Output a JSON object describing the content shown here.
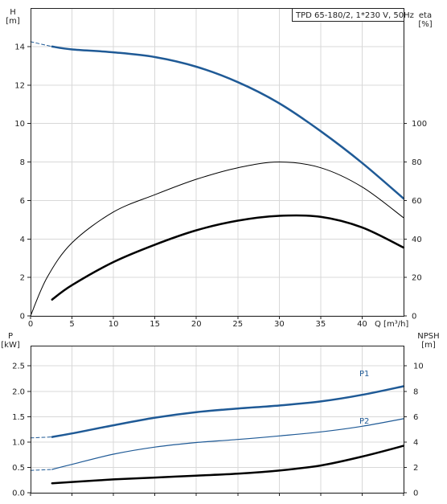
{
  "chart_data": [
    {
      "type": "line",
      "title": "TPD 65-180/2, 1*230 V, 50Hz",
      "xlabel": "Q [m³/h]",
      "ylabel_left": [
        "H",
        "[m]"
      ],
      "ylabel_right": [
        "eta",
        "[%]"
      ],
      "xlim": [
        0,
        45
      ],
      "ylim_left": [
        0,
        16
      ],
      "ylim_right": [
        0,
        160
      ],
      "x_ticks": [
        "0",
        "5",
        "10",
        "15",
        "20",
        "25",
        "30",
        "35",
        "40"
      ],
      "y_ticks_left": [
        "0",
        "2",
        "4",
        "6",
        "8",
        "10",
        "12",
        "14"
      ],
      "y_ticks_right": [
        "0",
        "20",
        "40",
        "60",
        "80",
        "100"
      ],
      "grid": true,
      "colors": {
        "head": "#1f5a96",
        "efficiency": "#000000",
        "grid": "#d8d8d8"
      },
      "series": [
        {
          "key": "h_dashed",
          "axis": "left",
          "color": "#1f5a96",
          "width": 1,
          "dash": true,
          "x": [
            0,
            2.6
          ],
          "y": [
            14.25,
            14.0
          ]
        },
        {
          "key": "h",
          "axis": "left",
          "color": "#1f5a96",
          "width": 2.5,
          "x": [
            2.6,
            5,
            10,
            15,
            20,
            25,
            30,
            35,
            40,
            45
          ],
          "y": [
            14.0,
            13.85,
            13.7,
            13.45,
            12.95,
            12.15,
            11.05,
            9.6,
            7.95,
            6.1
          ]
        },
        {
          "key": "eta_thin",
          "axis": "right",
          "color": "#000000",
          "width": 1,
          "x": [
            0,
            2,
            5,
            10,
            15,
            20,
            25,
            30,
            35,
            40,
            45
          ],
          "y": [
            0,
            20,
            38,
            54,
            63,
            71,
            77,
            80,
            77,
            67,
            51
          ]
        },
        {
          "key": "eta_thick",
          "axis": "right",
          "color": "#000000",
          "width": 2.5,
          "x": [
            2.6,
            5,
            10,
            15,
            20,
            25,
            30,
            35,
            40,
            45
          ],
          "y": [
            8.5,
            16,
            28,
            37,
            44.5,
            49.5,
            52,
            51.5,
            46,
            35.5
          ]
        }
      ]
    },
    {
      "type": "line",
      "ylabel_left": [
        "P",
        "[kW]"
      ],
      "ylabel_right": [
        "NPSH",
        "[m]"
      ],
      "xlim": [
        0,
        45
      ],
      "ylim_left": [
        0,
        2.9
      ],
      "ylim_right": [
        0,
        11.6
      ],
      "y_ticks_left": [
        "0.0",
        "0.5",
        "1.0",
        "1.5",
        "2.0",
        "2.5"
      ],
      "y_ticks_right": [
        "0",
        "2",
        "4",
        "6",
        "8",
        "10"
      ],
      "grid": true,
      "series": [
        {
          "key": "p1_dashed",
          "axis": "left",
          "color": "#1f5a96",
          "width": 1,
          "dash": true,
          "x": [
            0,
            2.6
          ],
          "y": [
            1.08,
            1.1
          ]
        },
        {
          "key": "p1",
          "axis": "left",
          "name": "P1",
          "color": "#1f5a96",
          "width": 2.5,
          "x": [
            2.6,
            5,
            10,
            15,
            20,
            25,
            30,
            35,
            40,
            45
          ],
          "y": [
            1.1,
            1.17,
            1.33,
            1.48,
            1.59,
            1.66,
            1.72,
            1.8,
            1.93,
            2.1
          ]
        },
        {
          "key": "p2_dashed",
          "axis": "left",
          "color": "#1f5a96",
          "width": 1,
          "dash": true,
          "x": [
            0,
            2.6
          ],
          "y": [
            0.44,
            0.46
          ]
        },
        {
          "key": "p2",
          "axis": "left",
          "name": "P2",
          "color": "#1f5a96",
          "width": 1.2,
          "x": [
            2.6,
            5,
            10,
            15,
            20,
            25,
            30,
            35,
            40,
            45
          ],
          "y": [
            0.46,
            0.56,
            0.76,
            0.9,
            0.99,
            1.05,
            1.12,
            1.2,
            1.31,
            1.46
          ]
        },
        {
          "key": "npsh",
          "axis": "right",
          "color": "#000000",
          "width": 2.5,
          "x": [
            2.6,
            5,
            10,
            15,
            20,
            25,
            30,
            35,
            40,
            45
          ],
          "y": [
            0.75,
            0.85,
            1.05,
            1.2,
            1.35,
            1.5,
            1.75,
            2.15,
            2.85,
            3.7
          ]
        }
      ]
    }
  ]
}
